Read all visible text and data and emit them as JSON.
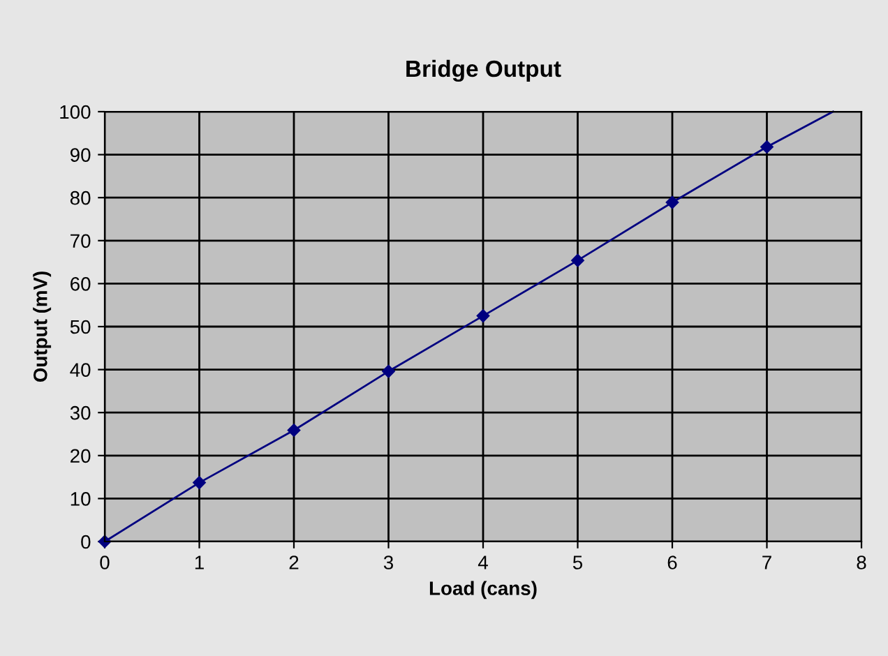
{
  "chart_data": {
    "type": "line",
    "title": "Bridge Output",
    "xlabel": "Load (cans)",
    "ylabel": "Output (mV)",
    "series": [
      {
        "color": "#000080",
        "x": [
          0,
          1,
          2,
          3,
          4,
          5,
          6,
          7
        ],
        "values": [
          0,
          13.7,
          25.9,
          39.6,
          52.5,
          65.4,
          78.9,
          91.8
        ],
        "marker": "diamond"
      },
      {
        "color": "#000080",
        "x": [
          7,
          7.7
        ],
        "values": [
          91.8,
          100
        ],
        "marker": "none"
      }
    ],
    "xlim": [
      0,
      8
    ],
    "xticks": [
      0,
      1,
      2,
      3,
      4,
      5,
      6,
      7,
      8
    ],
    "ylim": [
      0,
      100
    ],
    "yticks": [
      0,
      10,
      20,
      30,
      40,
      50,
      60,
      70,
      80,
      90,
      100
    ],
    "grid": true,
    "line_style": "solid"
  }
}
